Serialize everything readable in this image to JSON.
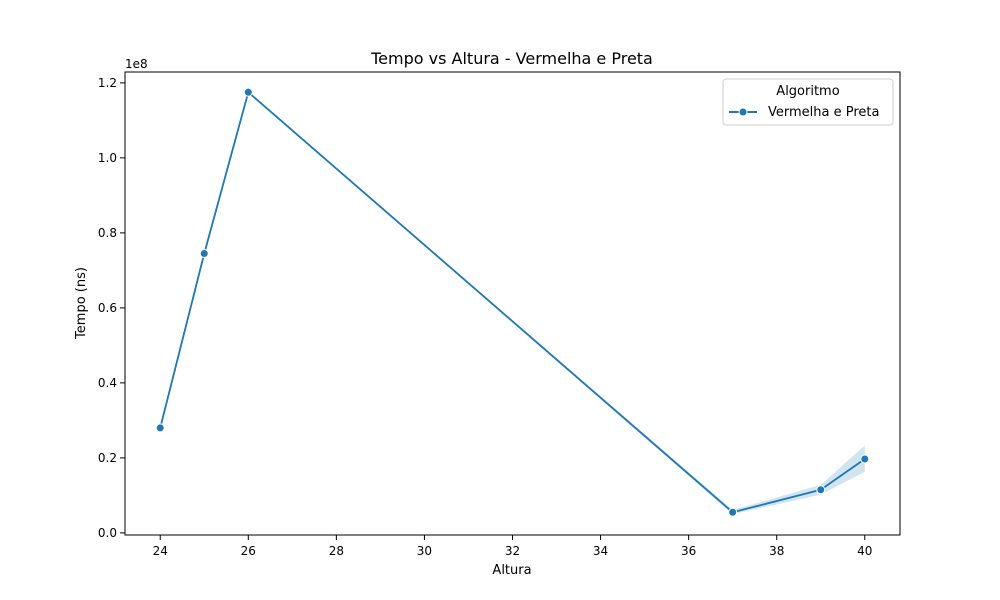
{
  "chart_data": {
    "type": "line",
    "title": "Tempo vs Altura - Vermelha e Preta",
    "xlabel": "Altura",
    "ylabel": "Tempo (ns)",
    "y_offset_label": "1e8",
    "xlim": [
      23.2,
      40.8
    ],
    "ylim": [
      -0.0056,
      1.229
    ],
    "x_ticks": [
      24,
      26,
      28,
      30,
      32,
      34,
      36,
      38,
      40
    ],
    "x_tick_labels": [
      "24",
      "26",
      "28",
      "30",
      "32",
      "34",
      "36",
      "38",
      "40"
    ],
    "y_ticks": [
      0.0,
      0.2,
      0.4,
      0.6,
      0.8,
      1.0,
      1.2
    ],
    "y_tick_labels": [
      "0.0",
      "0.2",
      "0.4",
      "0.6",
      "0.8",
      "1.0",
      "1.2"
    ],
    "grid": false,
    "legend": {
      "title": "Algoritmo",
      "placement": "top-right"
    },
    "series": [
      {
        "name": "Vermelha e Preta",
        "color": "#1f77b4",
        "x": [
          24,
          25,
          26,
          37,
          39,
          40
        ],
        "y": [
          0.28,
          0.745,
          1.175,
          0.055,
          0.115,
          0.197
        ],
        "ci_lower": [
          0.28,
          0.745,
          1.175,
          0.05,
          0.102,
          0.163
        ],
        "ci_upper": [
          0.28,
          0.745,
          1.175,
          0.061,
          0.128,
          0.233
        ]
      }
    ]
  }
}
